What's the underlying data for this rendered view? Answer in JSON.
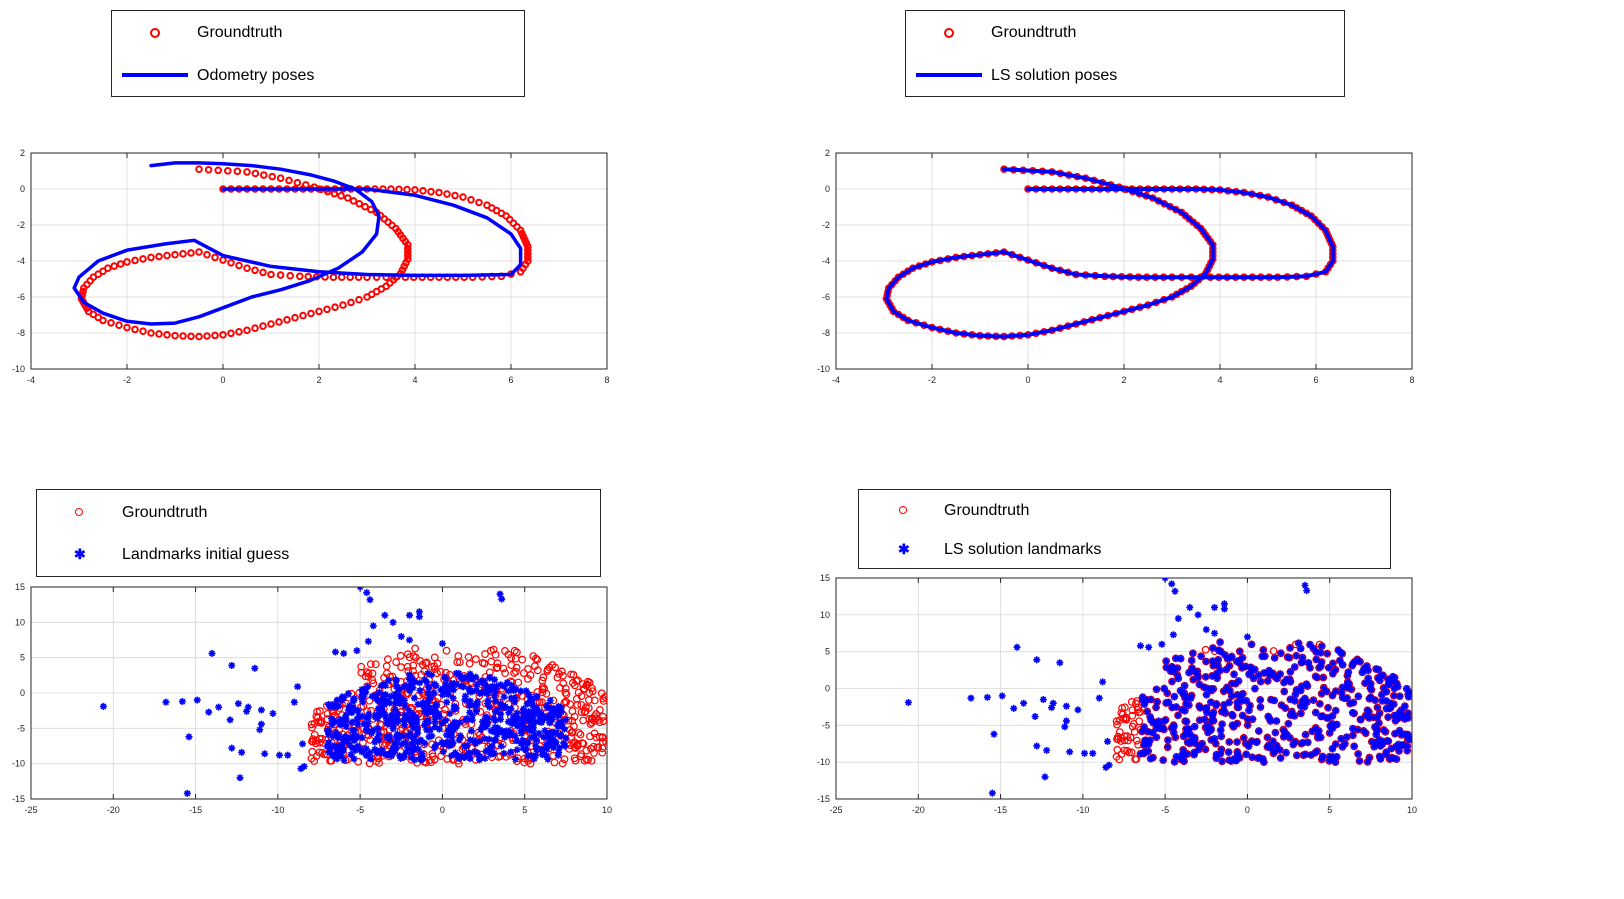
{
  "colors": {
    "groundtruth": "#ff0000",
    "estimate": "#0000ff",
    "grid": "#d9d9d9",
    "axis": "#262626"
  },
  "chart_data": [
    {
      "id": "odometry",
      "type": "line",
      "title": "",
      "xlabel": "",
      "ylabel": "",
      "xlim": [
        -4,
        8
      ],
      "ylim": [
        -10,
        2
      ],
      "xticks": [
        -4,
        -2,
        0,
        2,
        4,
        6,
        8
      ],
      "yticks": [
        -10,
        -8,
        -6,
        -4,
        -2,
        0,
        2
      ],
      "grid": true,
      "legend": [
        {
          "label": "Groundtruth",
          "marker": "circle",
          "color": "#ff0000"
        },
        {
          "label": "Odometry poses",
          "marker": "line",
          "color": "#0000ff"
        }
      ],
      "series": [
        {
          "name": "Groundtruth",
          "style": "circle",
          "points": [
            [
              0,
              0
            ],
            [
              0.5,
              0
            ],
            [
              1,
              0
            ],
            [
              1.5,
              0
            ],
            [
              2,
              0
            ],
            [
              2.5,
              0
            ],
            [
              3,
              0
            ],
            [
              3.5,
              0
            ],
            [
              4,
              -0.05
            ],
            [
              4.5,
              -0.2
            ],
            [
              5,
              -0.45
            ],
            [
              5.5,
              -0.9
            ],
            [
              5.9,
              -1.5
            ],
            [
              6.2,
              -2.3
            ],
            [
              6.35,
              -3.2
            ],
            [
              6.35,
              -4.0
            ],
            [
              6.2,
              -4.6
            ],
            [
              5.8,
              -4.85
            ],
            [
              5.2,
              -4.9
            ],
            [
              4.5,
              -4.9
            ],
            [
              3.8,
              -4.9
            ],
            [
              3.0,
              -4.9
            ],
            [
              2.3,
              -4.9
            ],
            [
              1.6,
              -4.85
            ],
            [
              1.0,
              -4.75
            ],
            [
              0.5,
              -4.4
            ],
            [
              0.0,
              -3.95
            ],
            [
              -0.5,
              -3.5
            ],
            [
              -1.0,
              -3.65
            ],
            [
              -1.5,
              -3.8
            ],
            [
              -2.0,
              -4.05
            ],
            [
              -2.4,
              -4.4
            ],
            [
              -2.7,
              -4.9
            ],
            [
              -2.9,
              -5.5
            ],
            [
              -2.95,
              -6.1
            ],
            [
              -2.8,
              -6.8
            ],
            [
              -2.5,
              -7.3
            ],
            [
              -2.0,
              -7.7
            ],
            [
              -1.5,
              -8.0
            ],
            [
              -1.0,
              -8.15
            ],
            [
              -0.5,
              -8.2
            ],
            [
              0.0,
              -8.1
            ],
            [
              0.5,
              -7.85
            ],
            [
              1.0,
              -7.5
            ],
            [
              1.5,
              -7.15
            ],
            [
              2.0,
              -6.8
            ],
            [
              2.5,
              -6.45
            ],
            [
              3.0,
              -6.0
            ],
            [
              3.4,
              -5.4
            ],
            [
              3.7,
              -4.7
            ],
            [
              3.85,
              -3.9
            ],
            [
              3.85,
              -3.1
            ],
            [
              3.6,
              -2.2
            ],
            [
              3.2,
              -1.3
            ],
            [
              2.6,
              -0.5
            ],
            [
              1.9,
              0.1
            ],
            [
              1.2,
              0.6
            ],
            [
              0.5,
              0.95
            ],
            [
              -0.5,
              1.1
            ]
          ]
        },
        {
          "name": "Odometry poses",
          "style": "line",
          "points": [
            [
              -1.5,
              1.3
            ],
            [
              -1.0,
              1.45
            ],
            [
              -0.5,
              1.45
            ],
            [
              0.0,
              1.4
            ],
            [
              0.6,
              1.3
            ],
            [
              1.2,
              1.1
            ],
            [
              1.8,
              0.8
            ],
            [
              2.3,
              0.45
            ],
            [
              2.75,
              0.0
            ],
            [
              3.1,
              -0.7
            ],
            [
              3.25,
              -1.5
            ],
            [
              3.2,
              -2.5
            ],
            [
              2.9,
              -3.5
            ],
            [
              2.4,
              -4.4
            ],
            [
              1.8,
              -5.1
            ],
            [
              1.2,
              -5.6
            ],
            [
              0.6,
              -6.0
            ],
            [
              0.0,
              -6.6
            ],
            [
              -0.5,
              -7.1
            ],
            [
              -1.0,
              -7.45
            ],
            [
              -1.5,
              -7.5
            ],
            [
              -2.0,
              -7.35
            ],
            [
              -2.5,
              -6.9
            ],
            [
              -2.9,
              -6.3
            ],
            [
              -3.1,
              -5.5
            ],
            [
              -3.0,
              -4.9
            ],
            [
              -2.6,
              -4.0
            ],
            [
              -2.0,
              -3.4
            ],
            [
              -1.2,
              -3.05
            ],
            [
              -0.6,
              -2.85
            ],
            [
              0.0,
              -3.7
            ],
            [
              1.0,
              -4.3
            ],
            [
              2.0,
              -4.6
            ],
            [
              3.0,
              -4.75
            ],
            [
              4.0,
              -4.8
            ],
            [
              5.0,
              -4.8
            ],
            [
              6.0,
              -4.75
            ],
            [
              6.2,
              -4.2
            ],
            [
              6.2,
              -3.3
            ],
            [
              6.0,
              -2.5
            ],
            [
              5.5,
              -1.6
            ],
            [
              4.8,
              -0.9
            ],
            [
              4.0,
              -0.35
            ],
            [
              3.0,
              0.0
            ],
            [
              2.0,
              0.0
            ],
            [
              1.0,
              0.0
            ],
            [
              0.0,
              0.0
            ]
          ]
        }
      ]
    },
    {
      "id": "ls-poses",
      "type": "line",
      "title": "",
      "xlabel": "",
      "ylabel": "",
      "xlim": [
        -4,
        8
      ],
      "ylim": [
        -10,
        2
      ],
      "xticks": [
        -4,
        -2,
        0,
        2,
        4,
        6,
        8
      ],
      "yticks": [
        -10,
        -8,
        -6,
        -4,
        -2,
        0,
        2
      ],
      "grid": true,
      "legend": [
        {
          "label": "Groundtruth",
          "marker": "circle",
          "color": "#ff0000"
        },
        {
          "label": "LS solution poses",
          "marker": "line",
          "color": "#0000ff"
        }
      ],
      "series": [
        {
          "name": "Groundtruth",
          "style": "circle",
          "same_as": "odometry.Groundtruth"
        },
        {
          "name": "LS solution poses",
          "style": "line",
          "same_as": "odometry.Groundtruth"
        }
      ]
    },
    {
      "id": "landmarks-initial",
      "type": "scatter",
      "title": "",
      "xlabel": "",
      "ylabel": "",
      "xlim": [
        -25,
        10
      ],
      "ylim": [
        -15,
        15
      ],
      "xticks": [
        -25,
        -20,
        -15,
        -10,
        -5,
        0,
        5,
        10
      ],
      "yticks": [
        -15,
        -10,
        -5,
        0,
        5,
        10,
        15
      ],
      "grid": true,
      "legend": [
        {
          "label": "Groundtruth",
          "marker": "circle",
          "color": "#ff0000"
        },
        {
          "label": "Landmarks initial guess",
          "marker": "star",
          "color": "#0000ff"
        }
      ],
      "series": [
        {
          "name": "Groundtruth",
          "style": "circle",
          "region": {
            "x": [
              -8.5,
              10
            ],
            "y": [
              -10,
              8
            ]
          },
          "count_approx": 600
        },
        {
          "name": "Landmarks initial guess",
          "style": "star",
          "outliers": [
            [
              -20.6,
              -1.9
            ],
            [
              -16.8,
              -1.3
            ],
            [
              -15.8,
              -1.2
            ],
            [
              -14.9,
              -1.0
            ],
            [
              -14.0,
              5.6
            ],
            [
              -15.4,
              -6.2
            ],
            [
              -15.5,
              -14.2
            ],
            [
              -14.2,
              -2.7
            ],
            [
              -13.6,
              -2.0
            ],
            [
              -12.9,
              -3.8
            ],
            [
              -12.8,
              3.9
            ],
            [
              -12.4,
              -1.5
            ],
            [
              -12.3,
              -12.0
            ],
            [
              -12.8,
              -7.8
            ],
            [
              -12.2,
              -8.4
            ],
            [
              -11.4,
              3.5
            ],
            [
              -11.8,
              -2.0
            ],
            [
              -11.9,
              -2.6
            ],
            [
              -11.0,
              -4.4
            ],
            [
              -11.1,
              -5.2
            ],
            [
              -10.8,
              -8.6
            ],
            [
              -11.0,
              -2.4
            ],
            [
              -10.3,
              -2.9
            ],
            [
              -9.9,
              -8.8
            ],
            [
              -9.4,
              -8.8
            ],
            [
              -9.0,
              -1.3
            ],
            [
              -8.6,
              -10.7
            ],
            [
              -8.4,
              -10.4
            ],
            [
              -8.5,
              -7.2
            ],
            [
              -8.8,
              0.9
            ]
          ],
          "cloud_region": {
            "x": [
              -8,
              7.5
            ],
            "y": [
              -10,
              3
            ]
          },
          "upper_scatter": [
            [
              -5,
              15
            ],
            [
              -4.6,
              14.2
            ],
            [
              -4.4,
              13.2
            ],
            [
              3.5,
              14
            ],
            [
              3.6,
              13.3
            ],
            [
              -2,
              11
            ],
            [
              -1.4,
              11.5
            ],
            [
              -1.4,
              10.8
            ],
            [
              -3.5,
              11
            ],
            [
              -3,
              10
            ],
            [
              -2.5,
              8
            ],
            [
              -4.2,
              9.5
            ],
            [
              -4.5,
              7.3
            ],
            [
              -5.2,
              6
            ],
            [
              -6,
              5.6
            ],
            [
              -6.5,
              5.8
            ],
            [
              0,
              7
            ],
            [
              -2,
              7.5
            ]
          ],
          "count_approx": 700
        }
      ]
    },
    {
      "id": "ls-landmarks",
      "type": "scatter",
      "title": "",
      "xlabel": "",
      "ylabel": "",
      "xlim": [
        -25,
        10
      ],
      "ylim": [
        -15,
        15
      ],
      "xticks": [
        -25,
        -20,
        -15,
        -10,
        -5,
        0,
        5,
        10
      ],
      "yticks": [
        -15,
        -10,
        -5,
        0,
        5,
        10,
        15
      ],
      "grid": true,
      "legend": [
        {
          "label": "Groundtruth",
          "marker": "circle",
          "color": "#ff0000"
        },
        {
          "label": "LS solution landmarks",
          "marker": "star",
          "color": "#0000ff"
        }
      ],
      "series": [
        {
          "name": "Groundtruth",
          "style": "circle",
          "region": {
            "x": [
              -8.5,
              10
            ],
            "y": [
              -10,
              8
            ]
          },
          "count_approx": 600
        },
        {
          "name": "LS solution landmarks",
          "style": "star",
          "note": "overlaps groundtruth plus outliers at left",
          "count_approx": 630
        }
      ]
    }
  ],
  "legends": {
    "top_left": {
      "row1": "Groundtruth",
      "row2": "Odometry poses"
    },
    "top_right": {
      "row1": "Groundtruth",
      "row2": "LS solution poses"
    },
    "bottom_left": {
      "row1": "Groundtruth",
      "row2": "Landmarks initial guess"
    },
    "bottom_right": {
      "row1": "Groundtruth",
      "row2": "LS solution landmarks"
    }
  }
}
